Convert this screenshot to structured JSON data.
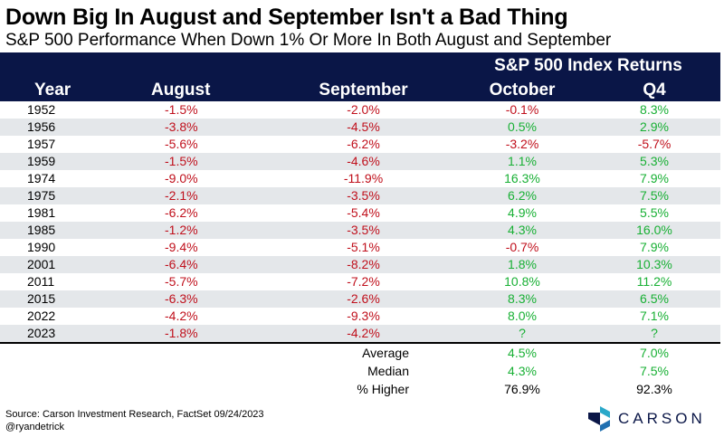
{
  "title": "Down Big In August and September Isn't a Bad Thing",
  "subtitle": "S&P 500 Performance When Down 1% Or More In Both August and September",
  "table": {
    "group_header": "S&P 500 Index Returns",
    "columns": [
      "Year",
      "August",
      "September",
      "October",
      "Q4"
    ],
    "rows": [
      {
        "year": "1952",
        "aug": "-1.5%",
        "sep": "-2.0%",
        "oct": "-0.1%",
        "q4": "8.3%"
      },
      {
        "year": "1956",
        "aug": "-3.8%",
        "sep": "-4.5%",
        "oct": "0.5%",
        "q4": "2.9%"
      },
      {
        "year": "1957",
        "aug": "-5.6%",
        "sep": "-6.2%",
        "oct": "-3.2%",
        "q4": "-5.7%"
      },
      {
        "year": "1959",
        "aug": "-1.5%",
        "sep": "-4.6%",
        "oct": "1.1%",
        "q4": "5.3%"
      },
      {
        "year": "1974",
        "aug": "-9.0%",
        "sep": "-11.9%",
        "oct": "16.3%",
        "q4": "7.9%"
      },
      {
        "year": "1975",
        "aug": "-2.1%",
        "sep": "-3.5%",
        "oct": "6.2%",
        "q4": "7.5%"
      },
      {
        "year": "1981",
        "aug": "-6.2%",
        "sep": "-5.4%",
        "oct": "4.9%",
        "q4": "5.5%"
      },
      {
        "year": "1985",
        "aug": "-1.2%",
        "sep": "-3.5%",
        "oct": "4.3%",
        "q4": "16.0%"
      },
      {
        "year": "1990",
        "aug": "-9.4%",
        "sep": "-5.1%",
        "oct": "-0.7%",
        "q4": "7.9%"
      },
      {
        "year": "2001",
        "aug": "-6.4%",
        "sep": "-8.2%",
        "oct": "1.8%",
        "q4": "10.3%"
      },
      {
        "year": "2011",
        "aug": "-5.7%",
        "sep": "-7.2%",
        "oct": "10.8%",
        "q4": "11.2%"
      },
      {
        "year": "2015",
        "aug": "-6.3%",
        "sep": "-2.6%",
        "oct": "8.3%",
        "q4": "6.5%"
      },
      {
        "year": "2022",
        "aug": "-4.2%",
        "sep": "-9.3%",
        "oct": "8.0%",
        "q4": "7.1%"
      },
      {
        "year": "2023",
        "aug": "-1.8%",
        "sep": "-4.2%",
        "oct": "?",
        "q4": "?"
      }
    ],
    "summary": [
      {
        "label": "Average",
        "oct": "4.5%",
        "q4": "7.0%"
      },
      {
        "label": "Median",
        "oct": "4.3%",
        "q4": "7.5%"
      },
      {
        "label": "% Higher",
        "oct": "76.9%",
        "q4": "92.3%"
      }
    ]
  },
  "footer": {
    "source": "Source: Carson Investment Research, FactSet 09/24/2023",
    "handle": "@ryandetrick",
    "logo_text": "CARSON"
  },
  "colors": {
    "header_bg": "#0a1647",
    "negative": "#c0101c",
    "positive": "#18b034",
    "stripe": "#e4e7ea"
  }
}
